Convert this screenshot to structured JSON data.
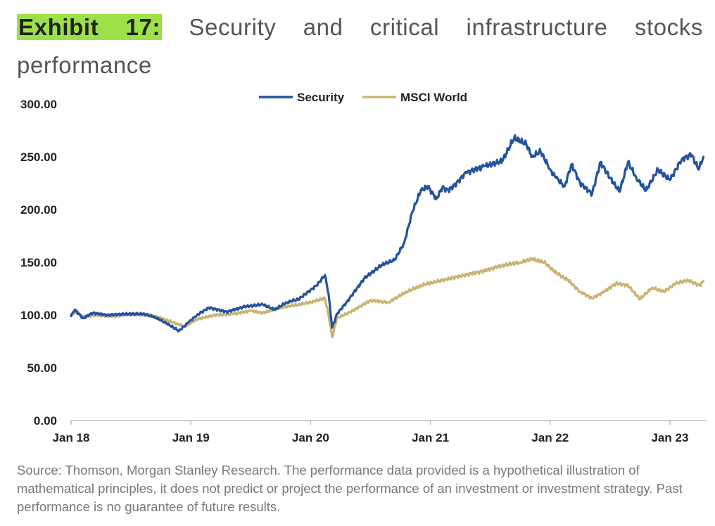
{
  "header": {
    "exhibit_label": "Exhibit 17:",
    "title": "Security and critical infrastructure stocks performance"
  },
  "footer": {
    "source": "Source: Thomson, Morgan Stanley Research. The performance data provided is a hypothetical illustration of mathematical principles, it does not predict or project the performance of an investment or investment strategy. Past performance is no guarantee of future results."
  },
  "chart_data": {
    "type": "line",
    "title": "Security and critical infrastructure stocks performance",
    "xlabel": "",
    "ylabel": "",
    "x_ticks": [
      "Jan 18",
      "Jan 19",
      "Jan 20",
      "Jan 21",
      "Jan 22",
      "Jan 23"
    ],
    "y_ticks": [
      "0.00",
      "50.00",
      "100.00",
      "150.00",
      "200.00",
      "250.00",
      "300.00"
    ],
    "xlim": [
      2018.0,
      2023.3
    ],
    "ylim": [
      0,
      300
    ],
    "grid": false,
    "legend_position": "top-center",
    "series": [
      {
        "name": "Security",
        "color": "#23529e",
        "x": [
          2018.0,
          2018.03,
          2018.1,
          2018.18,
          2018.3,
          2018.45,
          2018.6,
          2018.7,
          2018.8,
          2018.9,
          2018.98,
          2019.05,
          2019.15,
          2019.3,
          2019.45,
          2019.6,
          2019.7,
          2019.8,
          2019.9,
          2019.98,
          2020.05,
          2020.12,
          2020.15,
          2020.18,
          2020.22,
          2020.3,
          2020.45,
          2020.6,
          2020.7,
          2020.78,
          2020.85,
          2020.92,
          2020.98,
          2021.05,
          2021.1,
          2021.15,
          2021.2,
          2021.3,
          2021.45,
          2021.6,
          2021.7,
          2021.8,
          2021.85,
          2021.92,
          2022.0,
          2022.05,
          2022.12,
          2022.18,
          2022.25,
          2022.35,
          2022.42,
          2022.5,
          2022.58,
          2022.65,
          2022.72,
          2022.8,
          2022.9,
          2023.0,
          2023.1,
          2023.18,
          2023.24,
          2023.28
        ],
        "values": [
          99,
          105,
          97,
          102,
          100,
          101,
          101,
          98,
          92,
          85,
          93,
          100,
          107,
          103,
          108,
          110,
          105,
          112,
          115,
          122,
          128,
          138,
          120,
          88,
          101,
          112,
          135,
          148,
          152,
          168,
          198,
          218,
          222,
          210,
          221,
          218,
          223,
          235,
          241,
          246,
          268,
          262,
          250,
          255,
          238,
          230,
          222,
          243,
          225,
          215,
          245,
          230,
          217,
          245,
          230,
          218,
          238,
          228,
          248,
          252,
          238,
          250
        ]
      },
      {
        "name": "MSCI World",
        "color": "#c9b372",
        "x": [
          2018.0,
          2018.05,
          2018.1,
          2018.2,
          2018.35,
          2018.5,
          2018.65,
          2018.75,
          2018.85,
          2018.95,
          2019.05,
          2019.2,
          2019.35,
          2019.5,
          2019.6,
          2019.75,
          2019.9,
          2020.0,
          2020.12,
          2020.15,
          2020.18,
          2020.22,
          2020.35,
          2020.5,
          2020.65,
          2020.8,
          2020.95,
          2021.1,
          2021.25,
          2021.45,
          2021.6,
          2021.75,
          2021.85,
          2021.95,
          2022.05,
          2022.15,
          2022.25,
          2022.35,
          2022.45,
          2022.55,
          2022.65,
          2022.75,
          2022.85,
          2022.95,
          2023.05,
          2023.15,
          2023.25,
          2023.28
        ],
        "values": [
          100,
          103,
          98,
          100,
          99,
          101,
          100,
          97,
          93,
          89,
          96,
          100,
          101,
          104,
          102,
          107,
          110,
          112,
          116,
          100,
          79,
          97,
          104,
          114,
          112,
          122,
          129,
          133,
          137,
          142,
          147,
          150,
          153,
          150,
          140,
          133,
          122,
          116,
          122,
          130,
          128,
          115,
          126,
          122,
          130,
          133,
          128,
          132
        ]
      }
    ]
  }
}
